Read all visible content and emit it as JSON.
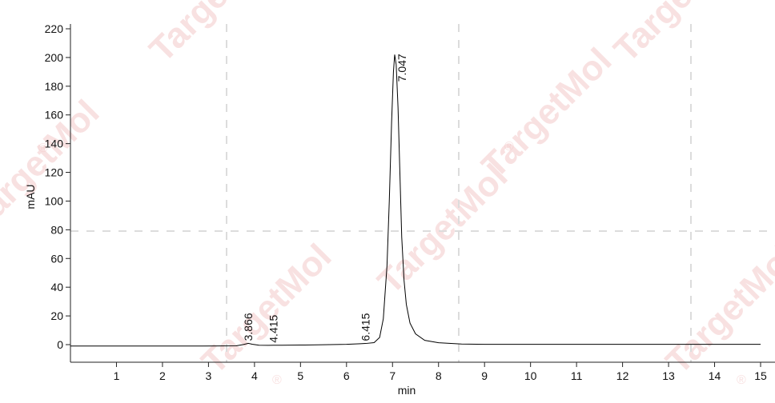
{
  "watermark": {
    "text": "TargetMol",
    "symbol": "®"
  },
  "chart_data": {
    "type": "line",
    "xlabel": "min",
    "ylabel": "mAU",
    "xlim": [
      0,
      15
    ],
    "ylim": [
      -12,
      222
    ],
    "xticks": [
      1,
      2,
      3,
      4,
      5,
      6,
      7,
      8,
      9,
      10,
      11,
      12,
      13,
      14,
      15
    ],
    "yticks": [
      0,
      20,
      40,
      60,
      80,
      100,
      120,
      140,
      160,
      180,
      200,
      220
    ],
    "grid": "dashed, light gray",
    "series": [
      {
        "color": "#000000",
        "x": [
          -1.0,
          0.5,
          1.5,
          2.5,
          3.3,
          3.6,
          3.75,
          3.866,
          3.95,
          4.1,
          4.3,
          4.415,
          4.6,
          5.0,
          5.5,
          6.0,
          6.3,
          6.415,
          6.6,
          6.72,
          6.8,
          6.88,
          6.93,
          6.98,
          7.02,
          7.047,
          7.08,
          7.12,
          7.16,
          7.2,
          7.25,
          7.3,
          7.38,
          7.5,
          7.7,
          8.0,
          8.5,
          9.0,
          10.0,
          12.0,
          14.0,
          15.0
        ],
        "y": [
          -1.0,
          -1.0,
          -1.0,
          -1.0,
          -0.9,
          -0.8,
          0.0,
          0.9,
          0.3,
          -0.4,
          -0.5,
          -0.4,
          -0.4,
          -0.3,
          -0.1,
          0.2,
          0.6,
          0.8,
          1.4,
          5.0,
          18.0,
          55.0,
          100.0,
          155.0,
          190.0,
          202.0,
          195.0,
          165.0,
          120.0,
          75.0,
          45.0,
          28.0,
          15.0,
          7.5,
          3.0,
          1.3,
          0.4,
          0.2,
          0.2,
          0.2,
          0.2,
          0.2
        ]
      }
    ],
    "peaks": [
      {
        "x": 3.866,
        "y": 0.9,
        "label": "3.866"
      },
      {
        "x": 4.415,
        "y": -0.4,
        "label": "4.415"
      },
      {
        "x": 6.415,
        "y": 0.8,
        "label": "6.415"
      },
      {
        "x": 7.047,
        "y": 202.0,
        "label": "7.047"
      }
    ]
  }
}
